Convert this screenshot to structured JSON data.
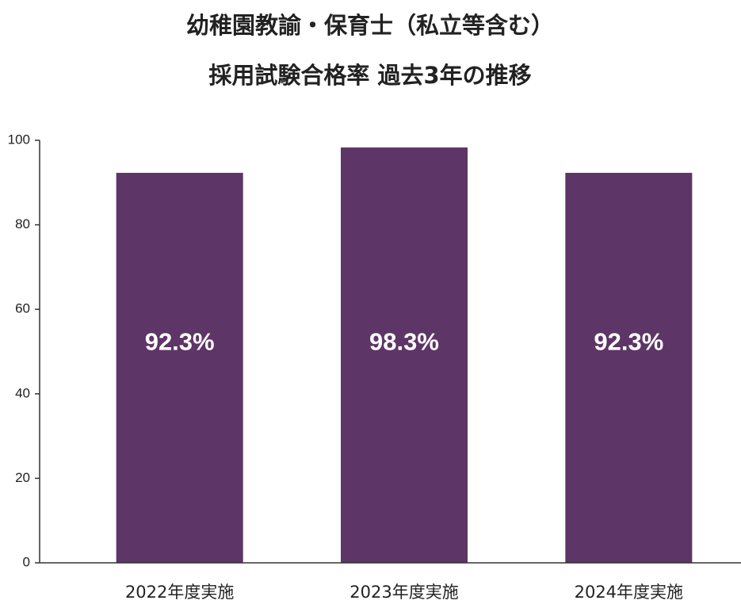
{
  "chart_data": {
    "type": "bar",
    "title": "幼稚園教諭・保育士（私立等含む）",
    "subtitle": "採用試験合格率 過去3年の推移",
    "categories": [
      "2022年度実施",
      "2023年度実施",
      "2024年度実施"
    ],
    "values": [
      92.3,
      98.3,
      92.3
    ],
    "value_labels": [
      "92.3%",
      "98.3%",
      "92.3%"
    ],
    "color": "#5d3566",
    "ylim": [
      0,
      100
    ],
    "yticks": [
      0,
      20,
      40,
      60,
      80,
      100
    ],
    "grid": false
  }
}
